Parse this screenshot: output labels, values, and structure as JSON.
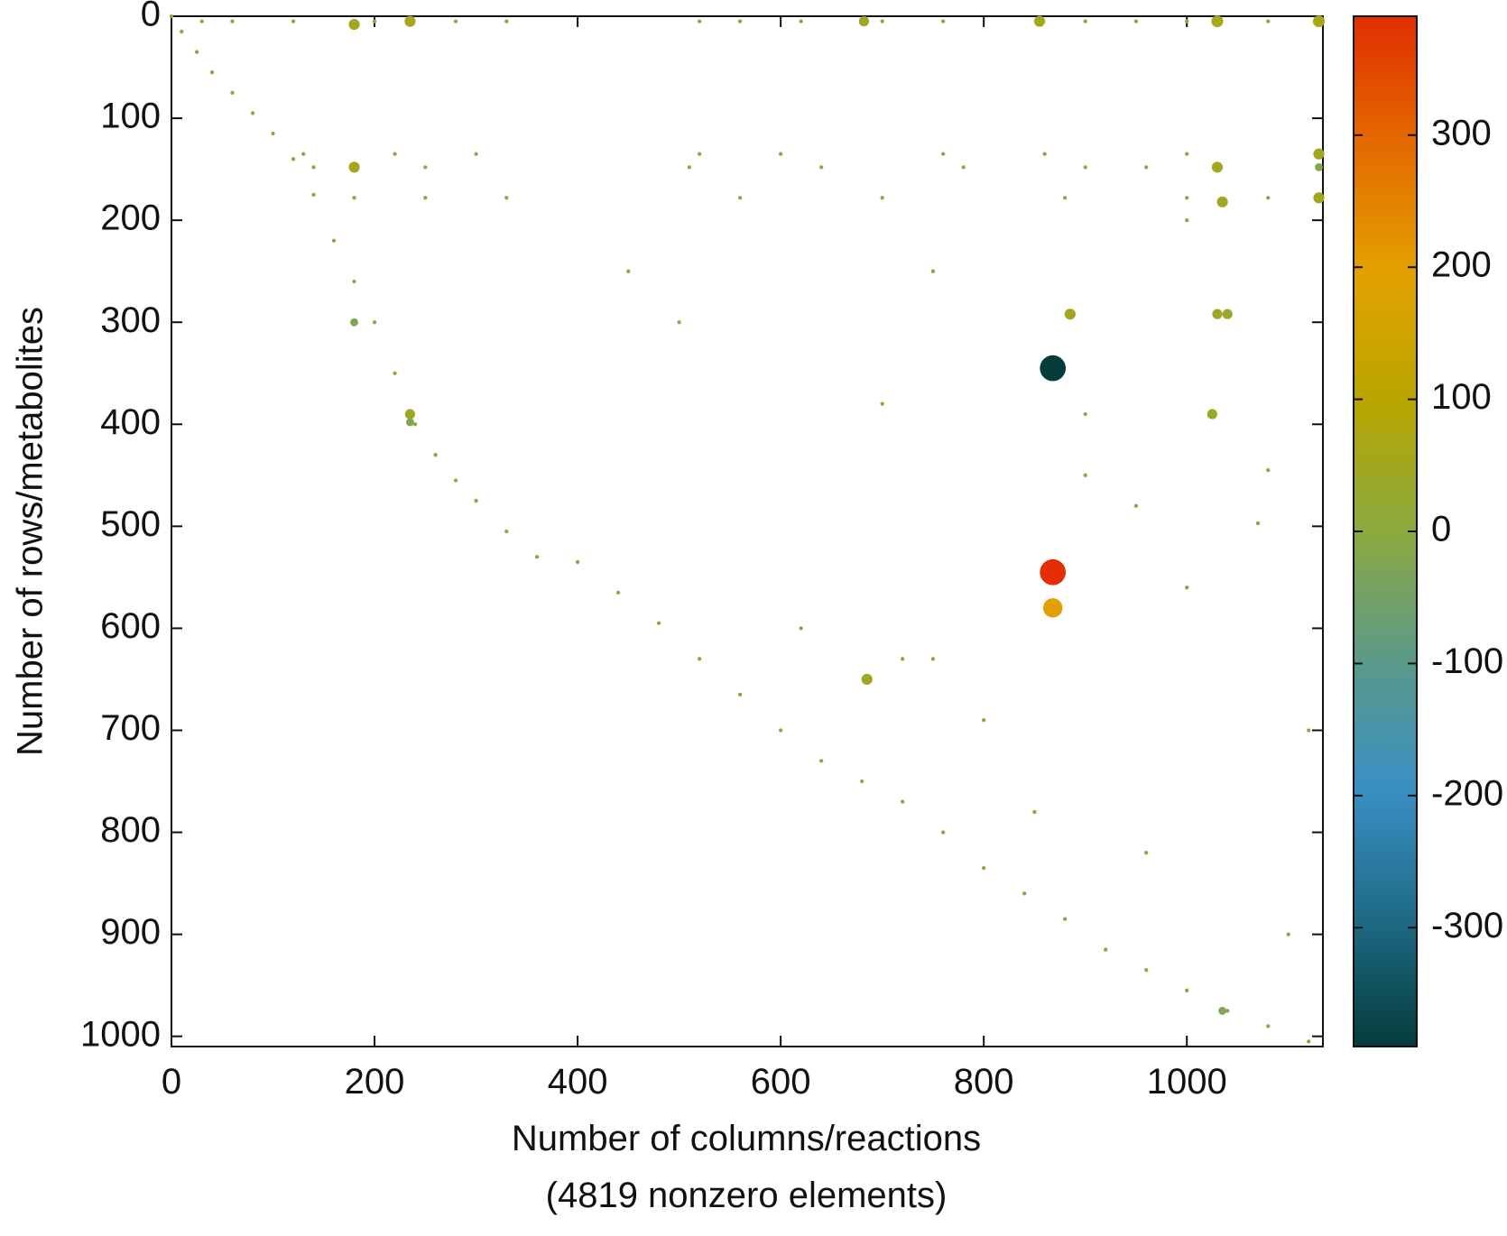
{
  "chart_data": {
    "type": "scatter",
    "xlabel": "Number of columns/reactions",
    "xlabel2": "(4819 nonzero elements)",
    "ylabel": "Number of rows/metabolites",
    "xlim": [
      0,
      1134
    ],
    "ylim": [
      1010,
      0
    ],
    "y_inverted": true,
    "xticks": [
      0,
      200,
      400,
      600,
      800,
      1000
    ],
    "yticks": [
      0,
      100,
      200,
      300,
      400,
      500,
      600,
      700,
      800,
      900,
      1000
    ],
    "clim": [
      -390,
      390
    ],
    "cticks": [
      -300,
      -200,
      -100,
      0,
      100,
      200,
      300
    ],
    "colormap": [
      "#053b3b",
      "#1f6b87",
      "#3a8fc4",
      "#5b9a88",
      "#8aaa40",
      "#b8a500",
      "#e2a200",
      "#e46a00",
      "#e22e00"
    ],
    "points": [
      [
        0,
        0,
        1
      ],
      [
        10,
        15,
        1
      ],
      [
        25,
        35,
        1
      ],
      [
        40,
        55,
        1
      ],
      [
        60,
        75,
        1
      ],
      [
        80,
        95,
        1
      ],
      [
        100,
        115,
        1
      ],
      [
        120,
        140,
        1
      ],
      [
        140,
        175,
        1
      ],
      [
        160,
        220,
        1
      ],
      [
        180,
        260,
        1
      ],
      [
        200,
        300,
        1
      ],
      [
        220,
        350,
        1
      ],
      [
        240,
        400,
        1
      ],
      [
        260,
        430,
        1
      ],
      [
        280,
        455,
        1
      ],
      [
        300,
        475,
        1
      ],
      [
        330,
        505,
        1
      ],
      [
        360,
        530,
        1
      ],
      [
        400,
        535,
        1
      ],
      [
        440,
        565,
        1
      ],
      [
        480,
        595,
        1
      ],
      [
        520,
        630,
        1
      ],
      [
        560,
        665,
        1
      ],
      [
        600,
        700,
        1
      ],
      [
        640,
        730,
        1
      ],
      [
        680,
        750,
        1
      ],
      [
        720,
        770,
        1
      ],
      [
        760,
        800,
        1
      ],
      [
        800,
        835,
        1
      ],
      [
        840,
        860,
        1
      ],
      [
        880,
        885,
        1
      ],
      [
        920,
        915,
        1
      ],
      [
        960,
        935,
        1
      ],
      [
        1000,
        955,
        1
      ],
      [
        1040,
        975,
        1
      ],
      [
        1080,
        990,
        1
      ],
      [
        1120,
        1005,
        1
      ],
      [
        30,
        5,
        1
      ],
      [
        60,
        5,
        1
      ],
      [
        120,
        5,
        1
      ],
      [
        200,
        5,
        1
      ],
      [
        280,
        5,
        1
      ],
      [
        330,
        5,
        1
      ],
      [
        520,
        5,
        1
      ],
      [
        560,
        5,
        1
      ],
      [
        620,
        5,
        1
      ],
      [
        700,
        5,
        1
      ],
      [
        760,
        5,
        1
      ],
      [
        900,
        5,
        1
      ],
      [
        950,
        5,
        1
      ],
      [
        1000,
        5,
        1
      ],
      [
        1080,
        5,
        1
      ],
      [
        130,
        135,
        1
      ],
      [
        220,
        135,
        1
      ],
      [
        300,
        135,
        1
      ],
      [
        520,
        135,
        1
      ],
      [
        600,
        135,
        1
      ],
      [
        760,
        135,
        1
      ],
      [
        860,
        135,
        1
      ],
      [
        1000,
        135,
        1
      ],
      [
        140,
        148,
        1
      ],
      [
        250,
        148,
        1
      ],
      [
        510,
        148,
        1
      ],
      [
        640,
        148,
        1
      ],
      [
        780,
        148,
        1
      ],
      [
        900,
        148,
        1
      ],
      [
        960,
        148,
        1
      ],
      [
        180,
        178,
        1
      ],
      [
        250,
        178,
        1
      ],
      [
        330,
        178,
        1
      ],
      [
        560,
        178,
        1
      ],
      [
        700,
        178,
        1
      ],
      [
        880,
        178,
        1
      ],
      [
        1000,
        178,
        1
      ],
      [
        1080,
        178,
        1
      ],
      [
        700,
        380,
        1
      ],
      [
        900,
        390,
        1
      ],
      [
        950,
        480,
        1
      ],
      [
        1000,
        560,
        1
      ],
      [
        620,
        600,
        1
      ],
      [
        750,
        630,
        1
      ],
      [
        800,
        690,
        1
      ],
      [
        850,
        780,
        1
      ],
      [
        1100,
        900,
        1
      ],
      [
        1120,
        700,
        1
      ],
      [
        500,
        300,
        1
      ],
      [
        450,
        250,
        1
      ],
      [
        750,
        250,
        1
      ],
      [
        1000,
        200,
        1
      ],
      [
        900,
        450,
        1
      ],
      [
        1080,
        445,
        1
      ],
      [
        1070,
        497,
        1
      ],
      [
        720,
        630,
        1
      ],
      [
        960,
        820,
        1
      ],
      [
        180,
        8,
        50
      ],
      [
        235,
        5,
        50
      ],
      [
        855,
        5,
        50
      ],
      [
        682,
        5,
        40
      ],
      [
        1030,
        5,
        60
      ],
      [
        1130,
        5,
        60
      ],
      [
        180,
        148,
        50
      ],
      [
        1030,
        148,
        50
      ],
      [
        1130,
        135,
        50
      ],
      [
        1130,
        148,
        -20
      ],
      [
        1130,
        178,
        50
      ],
      [
        1035,
        182,
        50
      ],
      [
        885,
        292,
        50
      ],
      [
        1030,
        292,
        40
      ],
      [
        1040,
        292,
        40
      ],
      [
        180,
        300,
        -20
      ],
      [
        235,
        390,
        40
      ],
      [
        235,
        398,
        -20
      ],
      [
        1025,
        390,
        40
      ],
      [
        1035,
        975,
        -20
      ],
      [
        685,
        650,
        50
      ],
      [
        868,
        345,
        -390
      ],
      [
        868,
        545,
        390
      ],
      [
        868,
        580,
        200
      ]
    ]
  }
}
